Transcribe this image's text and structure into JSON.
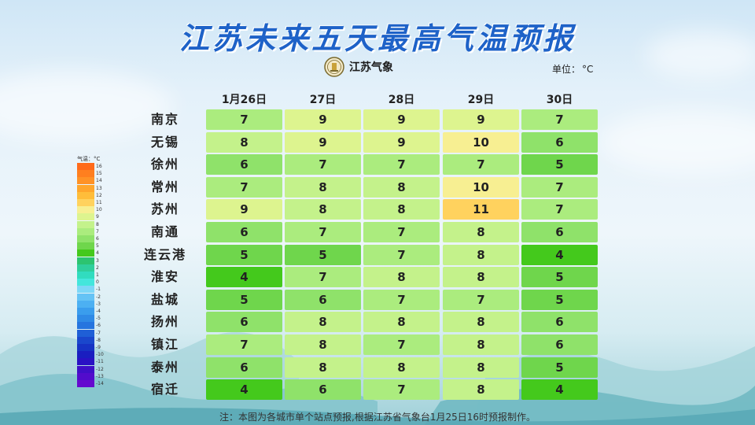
{
  "header": {
    "title": "江苏未来五天最高气温预报",
    "logo_text": "江苏气象",
    "unit_label": "单位：",
    "unit_value": "°C"
  },
  "chart_data": {
    "type": "heatmap",
    "title": "江苏未来五天最高气温预报",
    "columns": [
      "1月26日",
      "27日",
      "28日",
      "29日",
      "30日"
    ],
    "rows": [
      {
        "city": "南京",
        "values": [
          7,
          9,
          9,
          9,
          7
        ]
      },
      {
        "city": "无锡",
        "values": [
          8,
          9,
          9,
          10,
          6
        ]
      },
      {
        "city": "徐州",
        "values": [
          6,
          7,
          7,
          7,
          5
        ]
      },
      {
        "city": "常州",
        "values": [
          7,
          8,
          8,
          10,
          7
        ]
      },
      {
        "city": "苏州",
        "values": [
          9,
          8,
          8,
          11,
          7
        ]
      },
      {
        "city": "南通",
        "values": [
          6,
          7,
          7,
          8,
          6
        ]
      },
      {
        "city": "连云港",
        "values": [
          5,
          5,
          7,
          8,
          4
        ]
      },
      {
        "city": "淮安",
        "values": [
          4,
          7,
          8,
          8,
          5
        ]
      },
      {
        "city": "盐城",
        "values": [
          5,
          6,
          7,
          7,
          5
        ]
      },
      {
        "city": "扬州",
        "values": [
          6,
          8,
          8,
          8,
          6
        ]
      },
      {
        "city": "镇江",
        "values": [
          7,
          8,
          7,
          8,
          6
        ]
      },
      {
        "city": "泰州",
        "values": [
          6,
          8,
          8,
          8,
          5
        ]
      },
      {
        "city": "宿迁",
        "values": [
          4,
          6,
          7,
          8,
          4
        ]
      }
    ],
    "color_scale": {
      "16": "#ff6a1a",
      "15": "#ff7f1f",
      "14": "#ff9226",
      "13": "#ffa62c",
      "12": "#ffbd3a",
      "11": "#ffd25e",
      "10": "#f7ef92",
      "9": "#ddf48f",
      "8": "#c4f28b",
      "7": "#abec7e",
      "6": "#8fe26a",
      "5": "#6fd64c",
      "4": "#44c91c",
      "3": "#2cc470",
      "2": "#2fcf9c",
      "1": "#31dcbf",
      "0": "#44e6dc",
      "-1": "#7dd7f7",
      "-2": "#65c3f5",
      "-3": "#4cb0f2",
      "-4": "#3a9ded",
      "-5": "#2f8ae6",
      "-6": "#2675df",
      "-7": "#1f5fd6",
      "-8": "#1a47cc",
      "-9": "#1733c4",
      "-10": "#1a1ec0",
      "-11": "#2a12c4",
      "-12": "#3f0fc8",
      "-13": "#520ccc",
      "-14": "#6509cf"
    }
  },
  "legend": {
    "title": "气温：°C",
    "labels": [
      "16",
      "15",
      "14",
      "13",
      "12",
      "11",
      "10",
      "9",
      "8",
      "7",
      "6",
      "5",
      "4",
      "3",
      "2",
      "1",
      "0",
      "-1",
      "-2",
      "-3",
      "-4",
      "-5",
      "-6",
      "-7",
      "-8",
      "-9",
      "-10",
      "-11",
      "-12",
      "-13",
      "-14"
    ]
  },
  "footer": {
    "note": "注：本图为各城市单个站点预报,根据江苏省气象台1月25日16时预报制作。"
  }
}
